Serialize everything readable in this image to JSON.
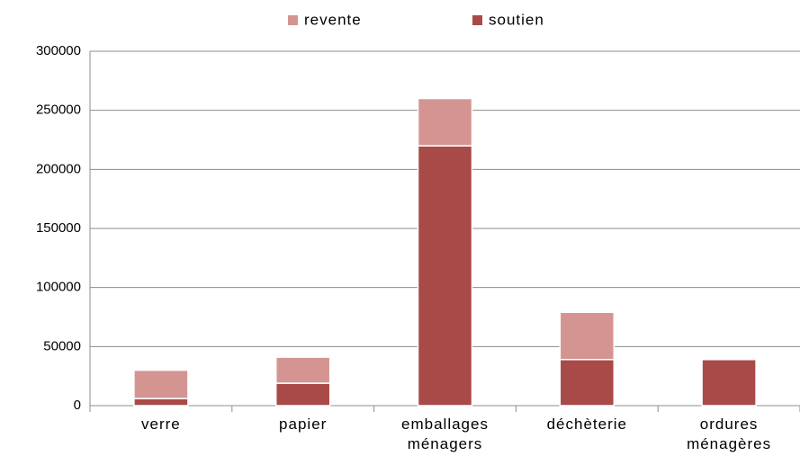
{
  "chart_data": {
    "type": "stacked_bar",
    "categories": [
      "verre",
      "papier",
      "emballages ménagers",
      "déchèterie",
      "ordures ménagères"
    ],
    "series": [
      {
        "name": "soutien",
        "color": "#a84a48",
        "values": [
          6000,
          19000,
          220000,
          39000,
          39000
        ]
      },
      {
        "name": "revente",
        "color": "#d49592",
        "values": [
          24000,
          22000,
          40000,
          40000,
          0
        ]
      }
    ],
    "ylim": [
      0,
      300000
    ],
    "yticks": [
      0,
      50000,
      100000,
      150000,
      200000,
      250000,
      300000
    ],
    "grid": true,
    "legend": "top"
  }
}
